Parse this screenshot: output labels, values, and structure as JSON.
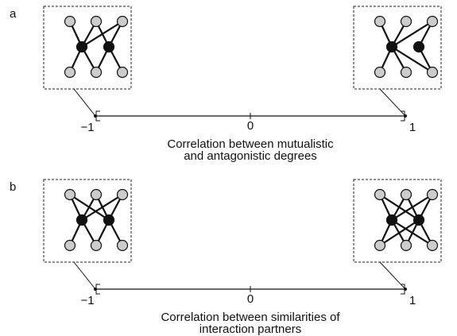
{
  "panels": [
    {
      "label": "a",
      "ticks": [
        "−1",
        "0",
        "1"
      ],
      "caption": [
        "Correlation between mutualistic",
        "and antagonistic degrees"
      ]
    },
    {
      "label": "b",
      "ticks": [
        "−1",
        "0",
        "1"
      ],
      "caption": [
        "Correlation between similarities of",
        "interaction partners"
      ]
    }
  ]
}
